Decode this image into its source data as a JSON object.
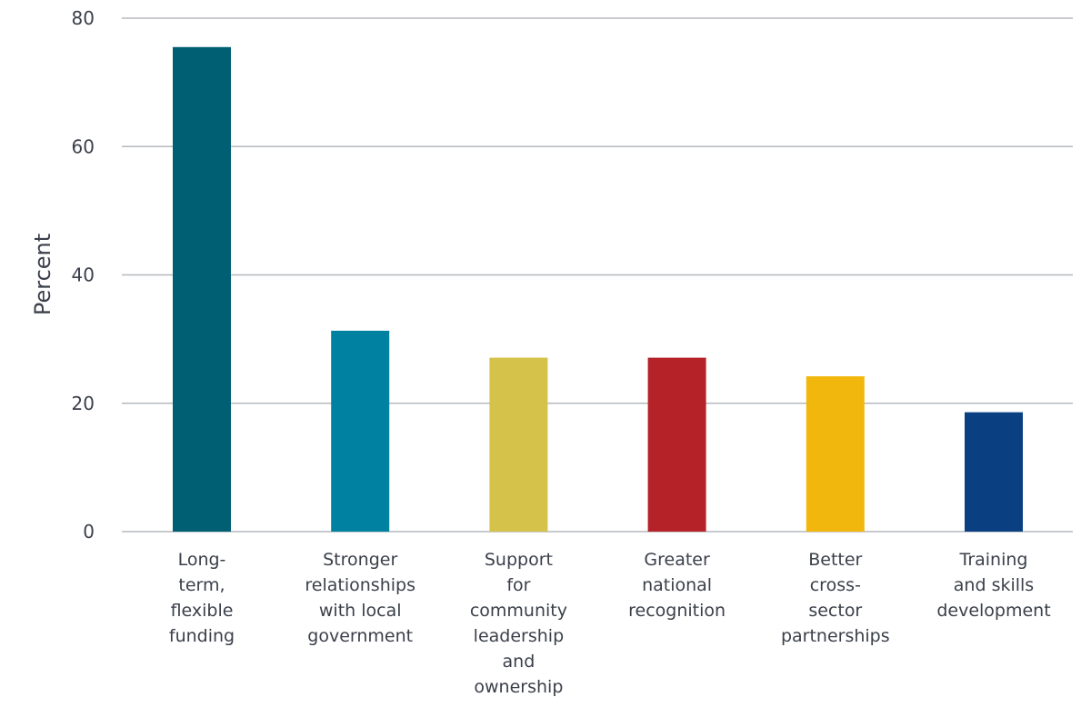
{
  "chart_data": {
    "type": "bar",
    "title": "",
    "xlabel": "",
    "ylabel": "Percent",
    "ylim": [
      0,
      80
    ],
    "yticks": [
      0,
      20,
      40,
      60,
      80
    ],
    "grid": true,
    "categories": [
      [
        "Long-",
        "term,",
        "flexible",
        "funding"
      ],
      [
        "Stronger",
        "relationships",
        "with local",
        "government"
      ],
      [
        "Support",
        "for",
        "community",
        "leadership",
        "and",
        "ownership"
      ],
      [
        "Greater",
        "national",
        "recognition"
      ],
      [
        "Better",
        "cross-",
        "sector",
        "partnerships"
      ],
      [
        "Training",
        "and skills",
        "development"
      ]
    ],
    "values": [
      75.5,
      31.3,
      27.1,
      27.1,
      24.2,
      18.6
    ],
    "colors": [
      "#005f73",
      "#0081a1",
      "#d4c24a",
      "#b52228",
      "#f2b70c",
      "#0a3f82"
    ]
  }
}
